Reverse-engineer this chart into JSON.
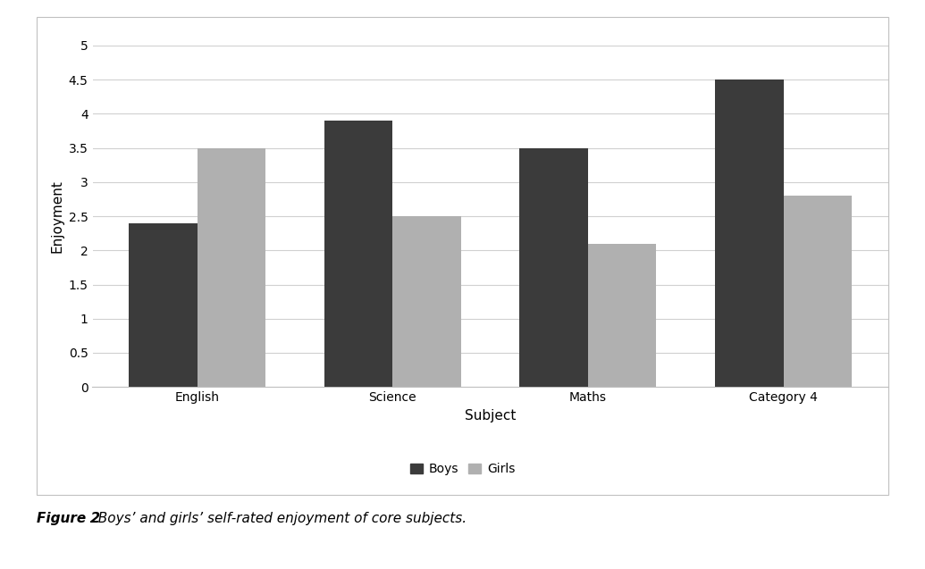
{
  "categories": [
    "English",
    "Science",
    "Maths",
    "Category 4"
  ],
  "boys_values": [
    2.4,
    3.9,
    3.5,
    4.5
  ],
  "girls_values": [
    3.5,
    2.5,
    2.1,
    2.8
  ],
  "boys_color": "#3b3b3b",
  "girls_color": "#b0b0b0",
  "xlabel": "Subject",
  "ylabel": "Enjoyment",
  "ylim": [
    0,
    5
  ],
  "yticks": [
    0,
    0.5,
    1,
    1.5,
    2,
    2.5,
    3,
    3.5,
    4,
    4.5,
    5
  ],
  "legend_labels": [
    "Boys",
    "Girls"
  ],
  "bar_width": 0.35,
  "figure_caption": "Figure 2. Boys’ and girls’ self-rated enjoyment of core subjects.",
  "background_color": "#ffffff",
  "plot_bg_color": "#ffffff",
  "border_color": "#c0c0c0",
  "grid_color": "#d0d0d0",
  "axis_label_fontsize": 11,
  "tick_fontsize": 10,
  "legend_fontsize": 10,
  "caption_fontsize": 11,
  "caption_bold": "Figure 2",
  "caption_rest": ". Boys’ and girls’ self-rated enjoyment of core subjects."
}
